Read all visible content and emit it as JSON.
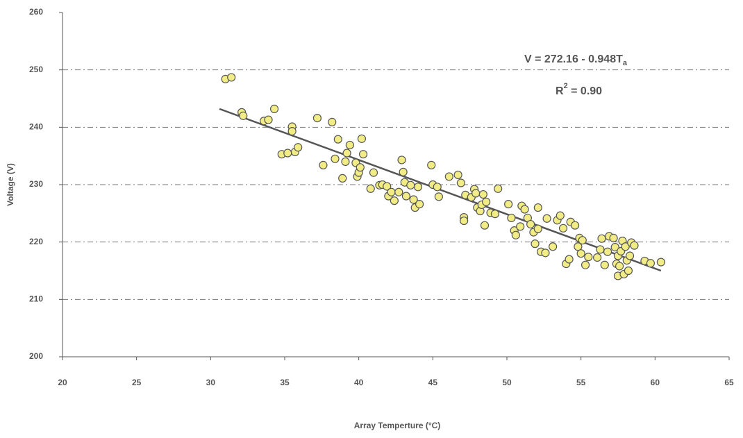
{
  "chart_data": {
    "type": "scatter",
    "x_label": "Array Temperture (°C)",
    "y_label": "Voltage (V)",
    "equation": {
      "text": "V = 272.16 - 0.948T",
      "sub": "a"
    },
    "r_squared": {
      "text": "R",
      "sup": "2",
      "rest": " = 0.90"
    },
    "xlim": [
      20,
      65
    ],
    "xticks": [
      20,
      25,
      30,
      35,
      40,
      45,
      50,
      55,
      60,
      65
    ],
    "ylim": [
      200,
      260
    ],
    "yticks": [
      200,
      210,
      220,
      230,
      240,
      250,
      260
    ],
    "grid": true,
    "color": "#f1ec86",
    "x": [
      31.0,
      31.4,
      32.1,
      32.2,
      33.6,
      33.9,
      34.3,
      34.8,
      35.2,
      35.5,
      35.5,
      35.7,
      35.9,
      37.2,
      37.6,
      38.2,
      38.4,
      38.6,
      38.9,
      39.1,
      39.2,
      39.4,
      39.8,
      39.9,
      40.0,
      40.1,
      40.2,
      40.3,
      40.8,
      41.0,
      41.4,
      41.6,
      41.9,
      42.0,
      42.2,
      42.4,
      42.7,
      42.9,
      43.0,
      43.1,
      43.2,
      43.5,
      43.7,
      43.8,
      44.0,
      44.1,
      44.9,
      45.0,
      45.3,
      45.4,
      46.1,
      46.7,
      46.9,
      47.1,
      47.1,
      47.2,
      47.6,
      47.8,
      47.9,
      48.0,
      48.2,
      48.3,
      48.4,
      48.5,
      48.6,
      48.9,
      49.2,
      49.4,
      50.1,
      50.3,
      50.5,
      50.6,
      50.9,
      51.0,
      51.2,
      51.4,
      51.6,
      51.8,
      51.9,
      52.1,
      52.1,
      52.3,
      52.6,
      52.7,
      53.1,
      53.4,
      53.6,
      53.8,
      54.0,
      54.2,
      54.3,
      54.6,
      54.8,
      54.9,
      55.0,
      55.1,
      55.3,
      55.5,
      56.1,
      56.3,
      56.4,
      56.6,
      56.8,
      56.9,
      57.2,
      57.3,
      57.4,
      57.5,
      57.5,
      57.6,
      57.7,
      57.8,
      57.9,
      58.0,
      58.1,
      58.2,
      58.3,
      58.4,
      58.6,
      59.3,
      59.7,
      60.4
    ],
    "values": [
      248.4,
      248.7,
      242.6,
      242.0,
      241.1,
      241.3,
      243.2,
      235.3,
      235.5,
      240.1,
      239.3,
      235.7,
      236.5,
      241.6,
      233.4,
      240.9,
      234.5,
      237.9,
      231.1,
      234.0,
      235.5,
      236.9,
      233.8,
      231.4,
      232.1,
      233.0,
      238.0,
      235.3,
      229.3,
      232.1,
      229.9,
      230.0,
      229.7,
      228.0,
      228.7,
      227.2,
      228.7,
      234.3,
      232.2,
      230.4,
      228.0,
      229.9,
      227.4,
      226.0,
      229.6,
      226.6,
      233.4,
      230.0,
      229.6,
      227.9,
      231.4,
      231.7,
      230.3,
      224.3,
      223.7,
      228.2,
      227.8,
      229.2,
      228.5,
      226.0,
      225.4,
      226.5,
      228.3,
      222.9,
      227.0,
      225.1,
      224.9,
      229.3,
      226.6,
      224.2,
      222.0,
      221.2,
      222.7,
      226.3,
      225.7,
      224.2,
      223.1,
      221.7,
      219.7,
      226.0,
      222.3,
      218.3,
      218.1,
      224.1,
      219.2,
      223.8,
      224.6,
      222.4,
      216.2,
      217.0,
      223.5,
      222.9,
      219.2,
      220.7,
      218.0,
      220.3,
      216.0,
      217.4,
      217.3,
      218.7,
      220.6,
      216.0,
      218.3,
      221.0,
      220.7,
      219.1,
      216.2,
      217.6,
      214.1,
      215.8,
      218.4,
      220.2,
      214.4,
      219.2,
      216.8,
      215.0,
      217.6,
      219.9,
      219.4,
      216.7,
      216.3,
      216.5
    ],
    "trend_line": {
      "x": [
        30.6,
        60.4
      ],
      "values": [
        243.2,
        215.0
      ],
      "color": "#555555"
    }
  }
}
